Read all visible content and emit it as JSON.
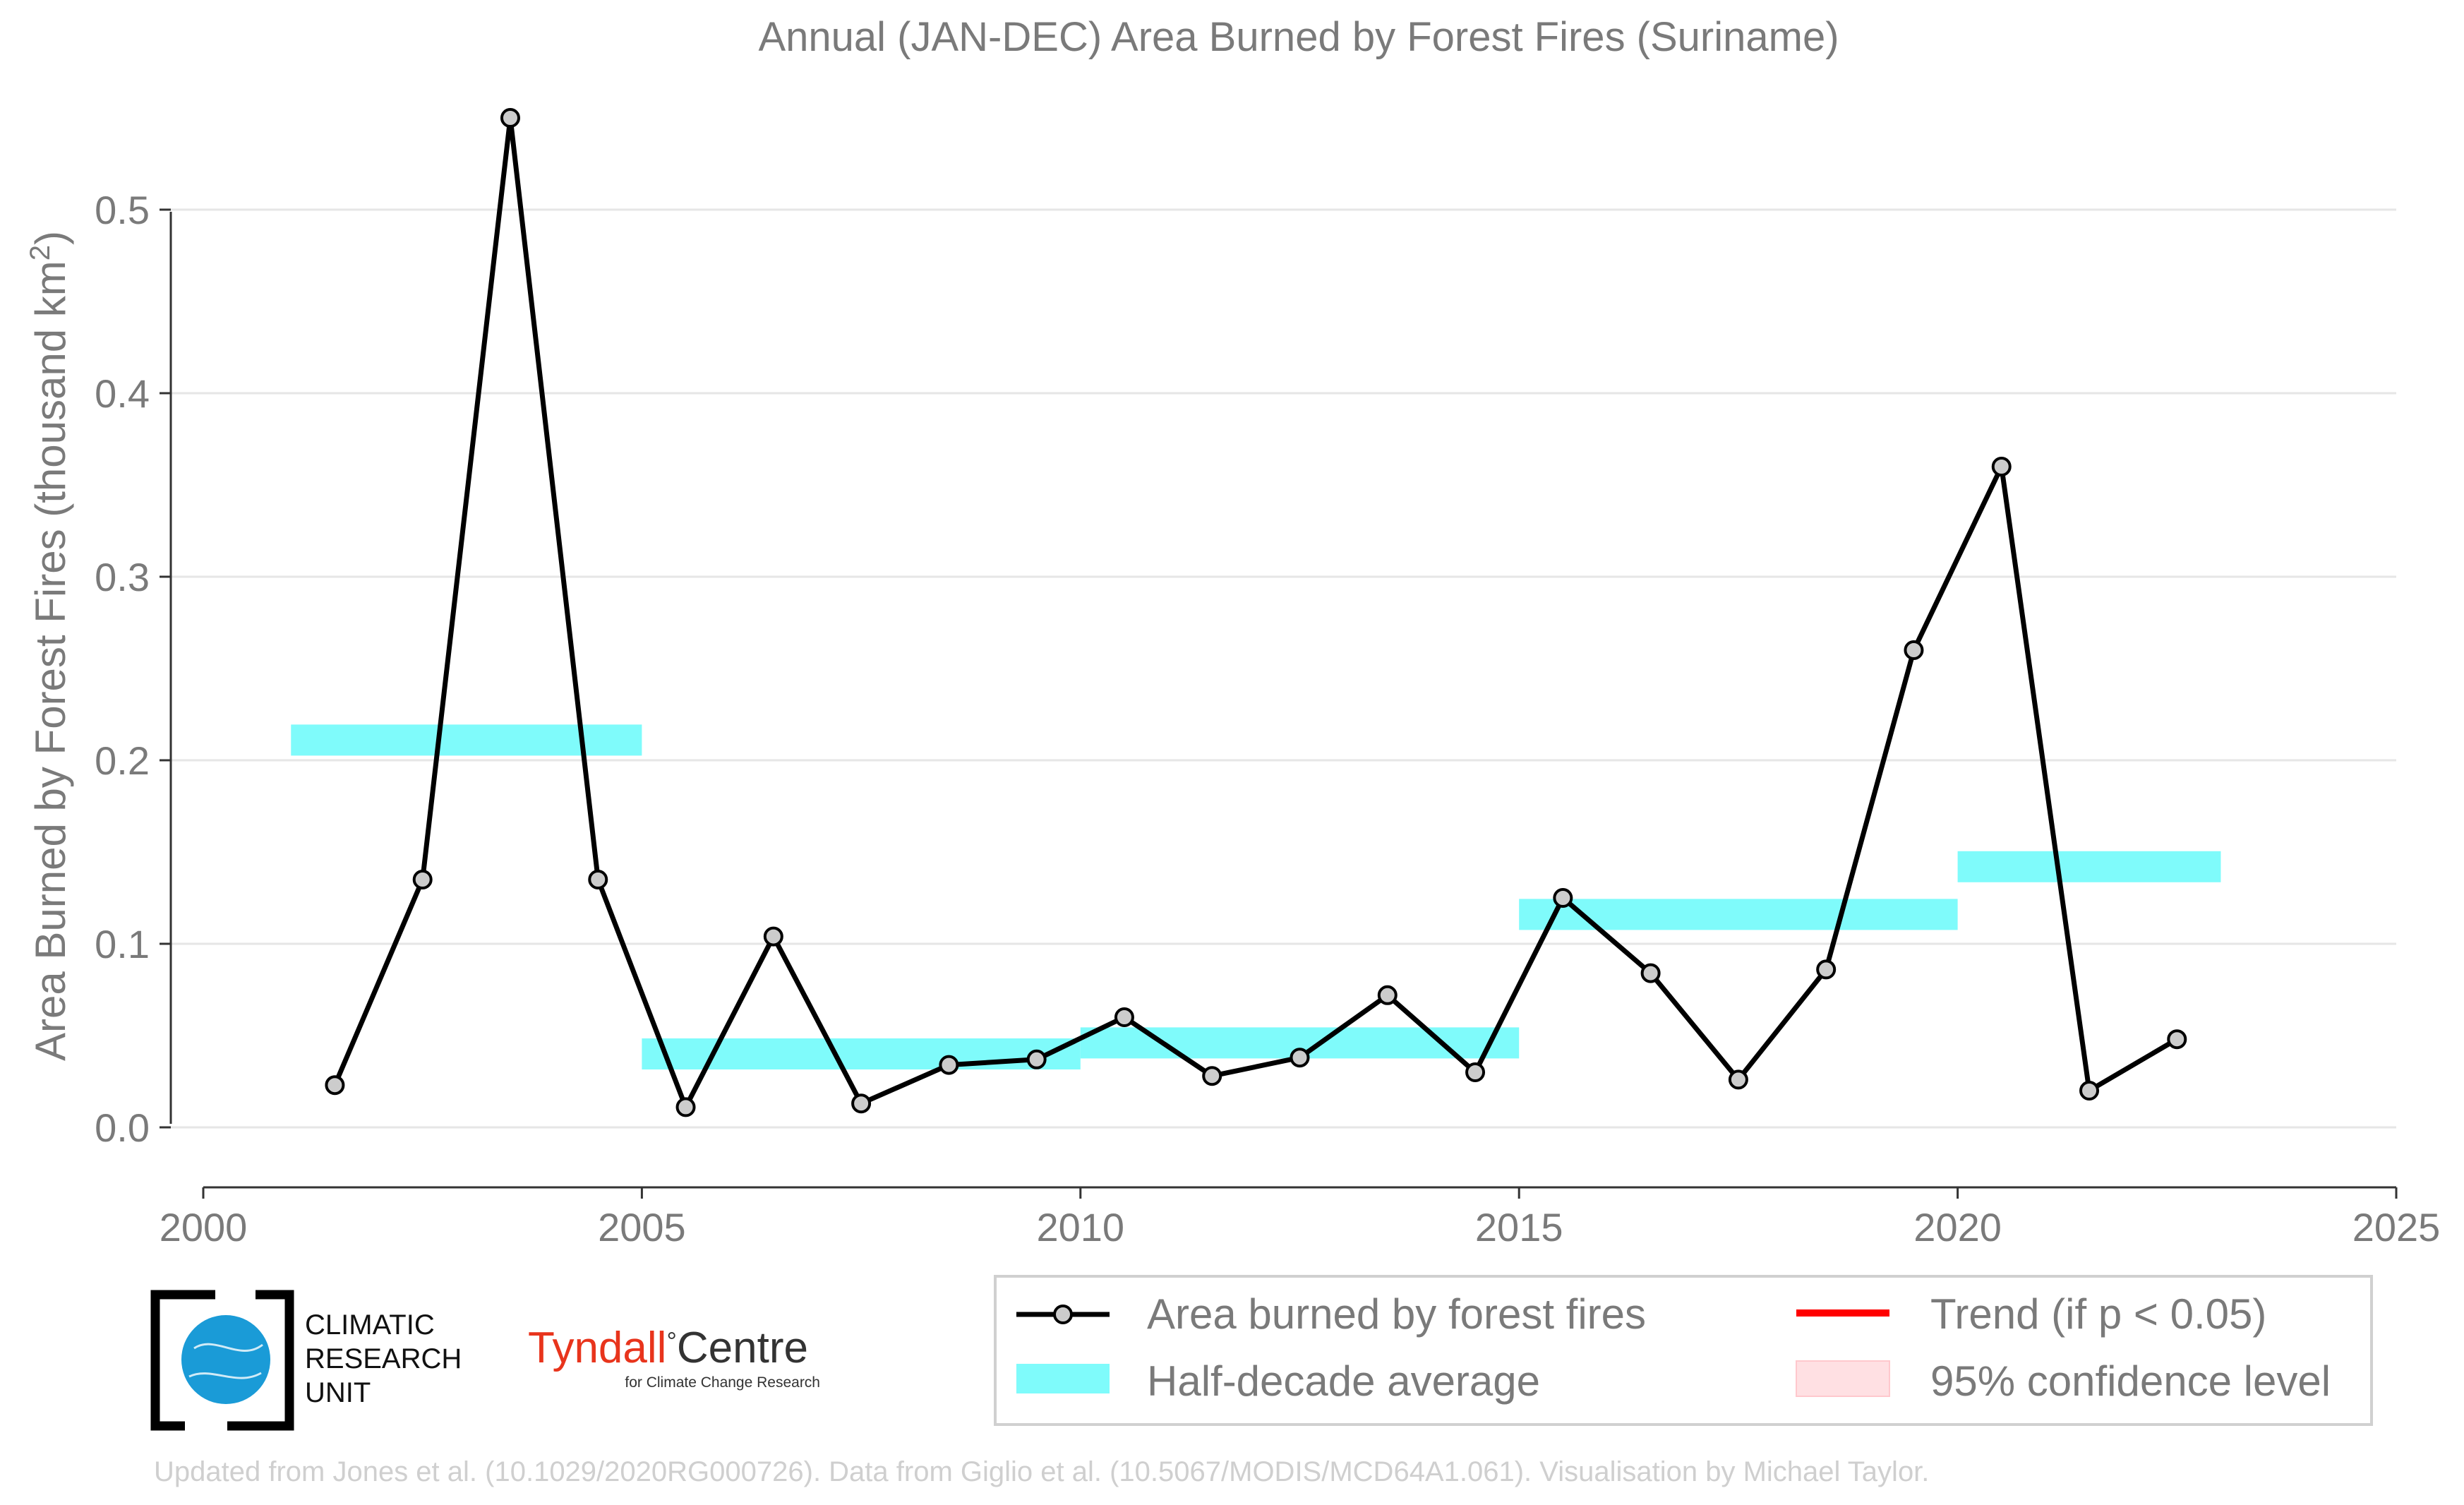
{
  "chart_data": {
    "type": "line",
    "title": "Annual (JAN-DEC) Area Burned by Forest Fires (Suriname)",
    "xlabel": "",
    "ylabel": "Area Burned by Forest Fires (thousand km",
    "ylabel_superscript": "2",
    "ylabel_suffix": ")",
    "xlim": [
      2000,
      2025
    ],
    "ylim": [
      -0.02,
      0.56
    ],
    "x_ticks": [
      2000,
      2005,
      2010,
      2015,
      2020,
      2025
    ],
    "y_ticks": [
      0.0,
      0.1,
      0.2,
      0.3,
      0.4,
      0.5
    ],
    "y_tick_labels": [
      "0.0",
      "0.1",
      "0.2",
      "0.3",
      "0.4",
      "0.5"
    ],
    "grid": "horizontal",
    "series": [
      {
        "name": "Area burned by forest fires",
        "color": "#000000",
        "marker_fill": "#cccccc",
        "x": [
          2001.5,
          2002.5,
          2003.5,
          2004.5,
          2005.5,
          2006.5,
          2007.5,
          2008.5,
          2009.5,
          2010.5,
          2011.5,
          2012.5,
          2013.5,
          2014.5,
          2015.5,
          2016.5,
          2017.5,
          2018.5,
          2019.5,
          2020.5,
          2021.5,
          2022.5
        ],
        "values": [
          0.023,
          0.135,
          0.55,
          0.135,
          0.011,
          0.104,
          0.013,
          0.034,
          0.037,
          0.06,
          0.028,
          0.038,
          0.072,
          0.03,
          0.125,
          0.084,
          0.026,
          0.086,
          0.26,
          0.36,
          0.02,
          0.048
        ]
      }
    ],
    "half_decade_averages": {
      "name": "Half-decade average",
      "color": "#7ffbfb",
      "segments": [
        {
          "x_start": 2001,
          "x_end": 2005,
          "value": 0.211
        },
        {
          "x_start": 2005,
          "x_end": 2010,
          "value": 0.04
        },
        {
          "x_start": 2010,
          "x_end": 2015,
          "value": 0.046
        },
        {
          "x_start": 2015,
          "x_end": 2020,
          "value": 0.116
        },
        {
          "x_start": 2020,
          "x_end": 2023,
          "value": 0.142
        }
      ]
    },
    "legend": {
      "placement": "bottom-right",
      "items": [
        {
          "label": "Area burned by forest fires",
          "kind": "line-marker",
          "color": "#000000"
        },
        {
          "label": "Trend (if p < 0.05)",
          "kind": "line",
          "color": "#ff0000"
        },
        {
          "label": "Half-decade average",
          "kind": "band",
          "color": "#7ffbfb"
        },
        {
          "label": "95% confidence level",
          "kind": "band",
          "color": "#ffe0e3"
        }
      ]
    }
  },
  "logos": {
    "cru_lines": [
      "CLIMATIC",
      "RESEARCH",
      "UNIT"
    ],
    "tyndall_name": "Tyndall",
    "tyndall_degree": "°",
    "tyndall_centre": "Centre",
    "tyndall_subtitle": "for Climate Change Research"
  },
  "footer": "Updated from Jones et al. (10.1029/2020RG000726). Data from Giglio et al. (10.5067/MODIS/MCD64A1.061). Visualisation by Michael Taylor."
}
